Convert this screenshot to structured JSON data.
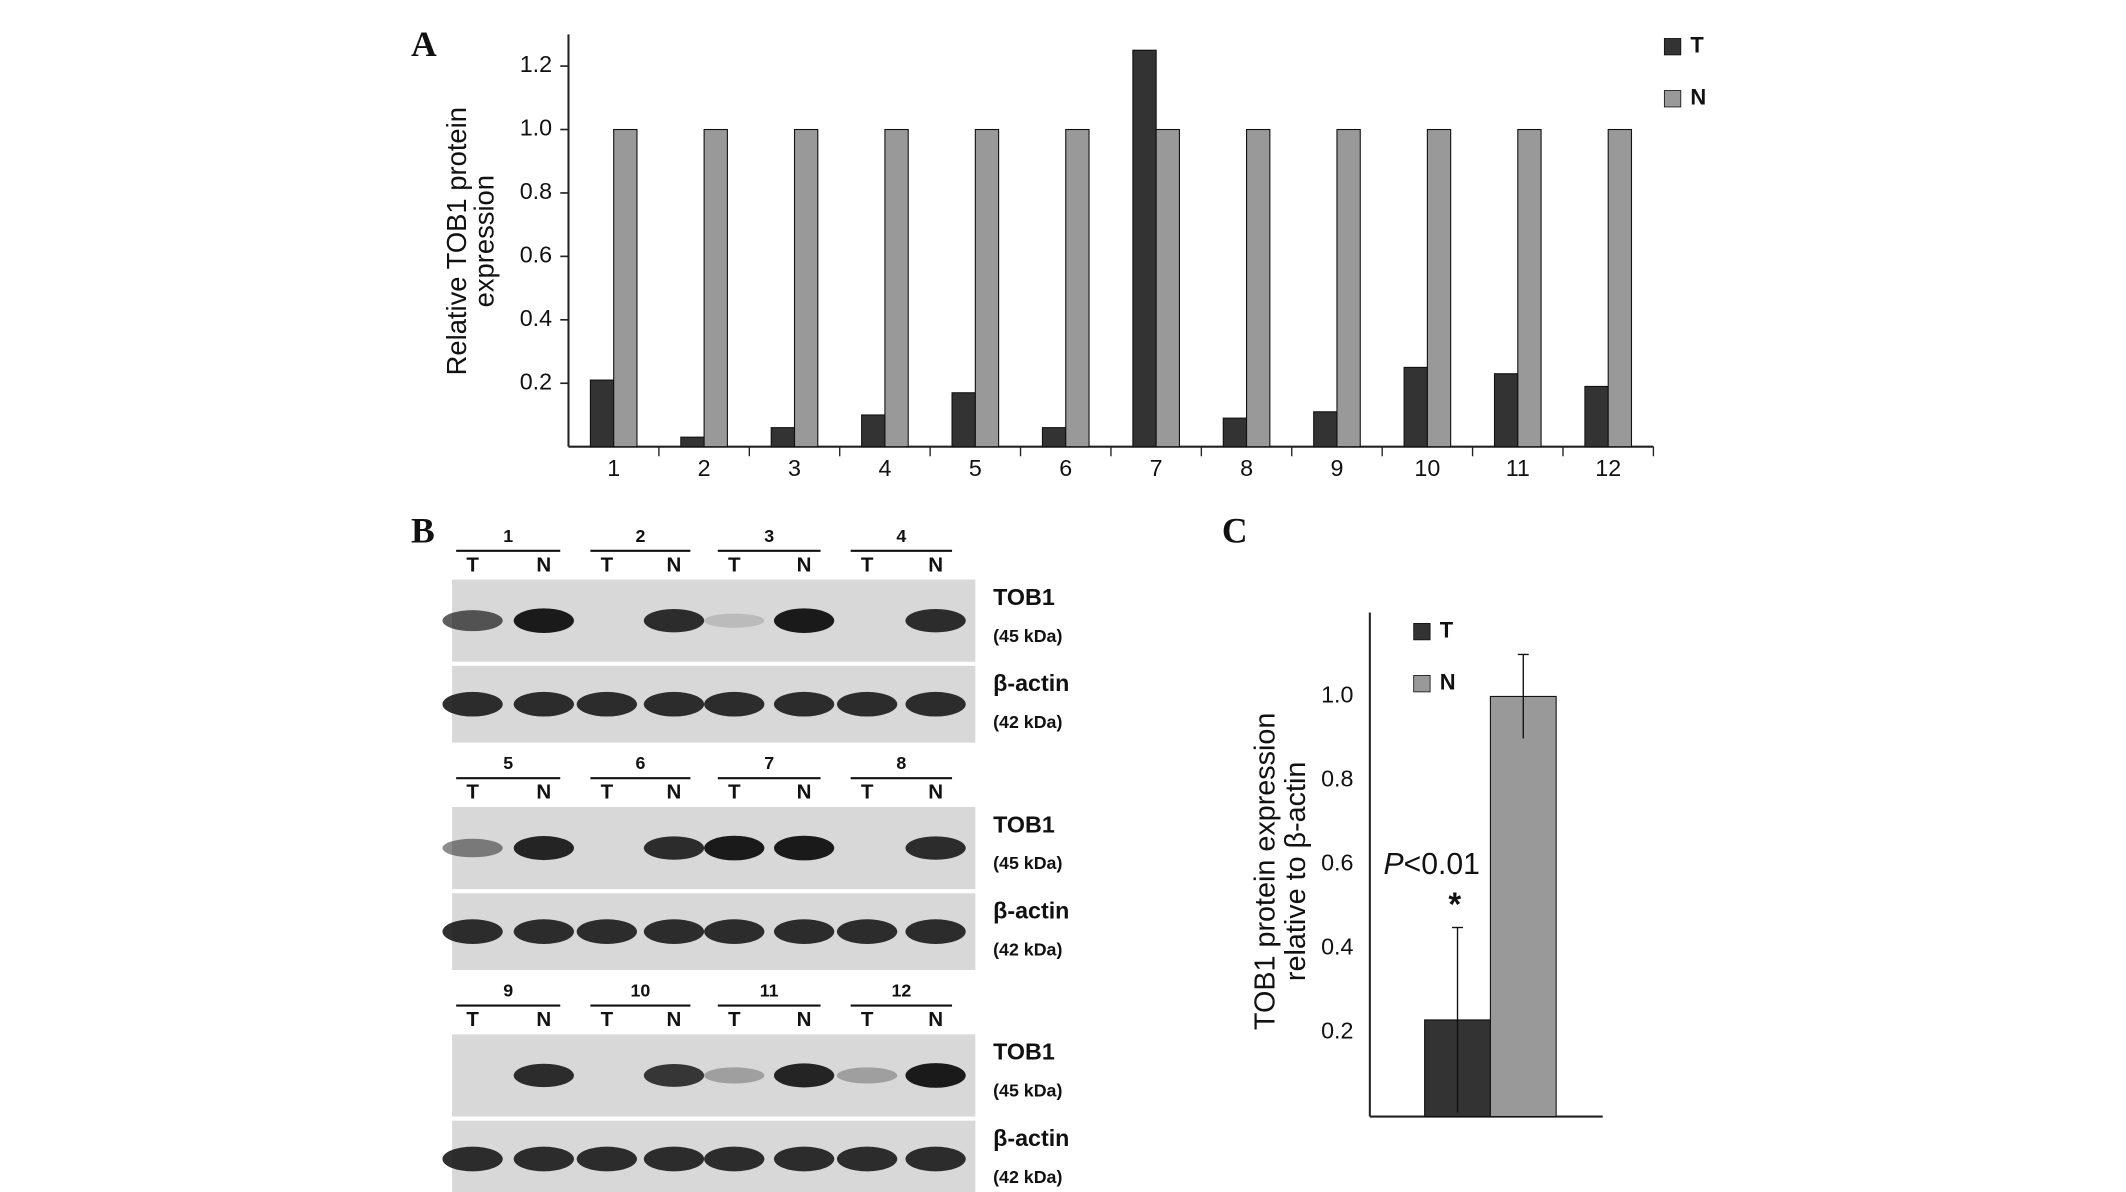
{
  "chart_data": [
    {
      "type": "bar",
      "panel_label": "A",
      "ylabel": [
        "Relative TOB1 protein",
        "expression"
      ],
      "categories": [
        "1",
        "2",
        "3",
        "4",
        "5",
        "6",
        "7",
        "8",
        "9",
        "10",
        "11",
        "12"
      ],
      "series": [
        {
          "name": "T",
          "color": "#333333",
          "values": [
            0.21,
            0.03,
            0.06,
            0.1,
            0.17,
            0.06,
            1.25,
            0.09,
            0.11,
            0.25,
            0.23,
            0.19
          ]
        },
        {
          "name": "N",
          "color": "#999999",
          "values": [
            1.0,
            1.0,
            1.0,
            1.0,
            1.0,
            1.0,
            1.0,
            1.0,
            1.0,
            1.0,
            1.0,
            1.0
          ]
        }
      ],
      "ylim": [
        0,
        1.3
      ],
      "yticks": [
        0.2,
        0.4,
        0.6,
        0.8,
        {
          "value": 1,
          "label": "1.0"
        },
        1.2
      ],
      "legend": "top-right"
    },
    {
      "type": "errorbar",
      "panel_label": "C",
      "ylabel": [
        "TOB1 protein expression",
        "relative to β-actin"
      ],
      "series": [
        {
          "name": "T",
          "color": "#333333",
          "values": [
            0.23
          ],
          "errors": [
            0.22
          ]
        },
        {
          "name": "N",
          "color": "#999999",
          "values": [
            1.0
          ],
          "errors": [
            0.1
          ]
        }
      ],
      "ylim": [
        0,
        1.2
      ],
      "yticks": [
        0.2,
        0.4,
        0.6,
        0.8,
        {
          "value": 1,
          "label": "1.0"
        }
      ],
      "annotation": [
        "P",
        "<0.01"
      ],
      "marker": "*",
      "legend": "top-left"
    }
  ],
  "blot": {
    "panel_label": "B",
    "lane_labels": [
      "T",
      "N"
    ],
    "bands": [
      {
        "name": "TOB1",
        "size": "(45 kDa)"
      },
      {
        "name": "β-actin",
        "size": "(42 kDa)"
      }
    ],
    "rows": [
      {
        "samples": [
          "1",
          "2",
          "3",
          "4"
        ]
      },
      {
        "samples": [
          "5",
          "6",
          "7",
          "8"
        ]
      },
      {
        "samples": [
          "9",
          "10",
          "11",
          "12"
        ]
      }
    ]
  }
}
